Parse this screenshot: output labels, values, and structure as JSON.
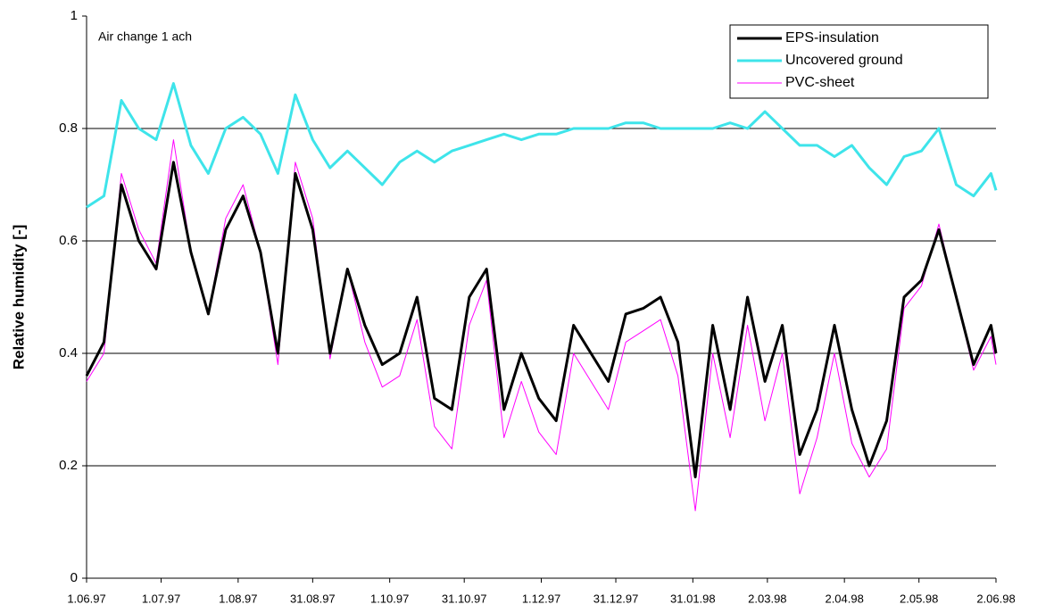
{
  "chart_data": {
    "type": "line",
    "annotation": "Air change 1 ach",
    "y_label": "Relative humidity  [-]",
    "x": [
      "1.06.97",
      "8.06.97",
      "15.06.97",
      "22.06.97",
      "29.06.97",
      "6.07.97",
      "13.07.97",
      "20.07.97",
      "27.07.97",
      "3.08.97",
      "10.08.97",
      "17.08.97",
      "24.08.97",
      "31.08.97",
      "7.09.97",
      "14.09.97",
      "21.09.97",
      "28.09.97",
      "5.10.97",
      "12.10.97",
      "19.10.97",
      "26.10.97",
      "2.11.97",
      "9.11.97",
      "16.11.97",
      "23.11.97",
      "30.11.97",
      "7.12.97",
      "14.12.97",
      "21.12.97",
      "28.12.97",
      "4.01.98",
      "11.01.98",
      "18.01.98",
      "25.01.98",
      "1.02.98",
      "8.02.98",
      "15.02.98",
      "22.02.98",
      "1.03.98",
      "8.03.98",
      "15.03.98",
      "22.03.98",
      "29.03.98",
      "5.04.98",
      "12.04.98",
      "19.04.98",
      "26.04.98",
      "3.05.98",
      "10.05.98",
      "17.05.98",
      "24.05.98",
      "31.05.98",
      "2.06.98"
    ],
    "series": [
      {
        "name": "EPS-insulation",
        "color": "#000000",
        "values": [
          0.36,
          0.42,
          0.7,
          0.6,
          0.55,
          0.74,
          0.58,
          0.47,
          0.62,
          0.68,
          0.58,
          0.4,
          0.72,
          0.62,
          0.4,
          0.55,
          0.45,
          0.38,
          0.4,
          0.5,
          0.32,
          0.3,
          0.5,
          0.55,
          0.3,
          0.4,
          0.32,
          0.28,
          0.45,
          0.4,
          0.35,
          0.47,
          0.48,
          0.5,
          0.42,
          0.18,
          0.45,
          0.3,
          0.5,
          0.35,
          0.45,
          0.22,
          0.3,
          0.45,
          0.3,
          0.2,
          0.28,
          0.5,
          0.53,
          0.62,
          0.5,
          0.38,
          0.45,
          0.4
        ]
      },
      {
        "name": "Uncovered ground",
        "color": "#3ee4ea",
        "values": [
          0.66,
          0.68,
          0.85,
          0.8,
          0.78,
          0.88,
          0.77,
          0.72,
          0.8,
          0.82,
          0.79,
          0.72,
          0.86,
          0.78,
          0.73,
          0.76,
          0.73,
          0.7,
          0.74,
          0.76,
          0.74,
          0.76,
          0.77,
          0.78,
          0.79,
          0.78,
          0.79,
          0.79,
          0.8,
          0.8,
          0.8,
          0.81,
          0.81,
          0.8,
          0.8,
          0.8,
          0.8,
          0.81,
          0.8,
          0.83,
          0.8,
          0.77,
          0.77,
          0.75,
          0.77,
          0.73,
          0.7,
          0.75,
          0.76,
          0.8,
          0.7,
          0.68,
          0.72,
          0.69
        ]
      },
      {
        "name": "PVC-sheet",
        "color": "#ff00ff",
        "values": [
          0.35,
          0.4,
          0.72,
          0.62,
          0.56,
          0.78,
          0.58,
          0.47,
          0.64,
          0.7,
          0.58,
          0.38,
          0.74,
          0.64,
          0.39,
          0.55,
          0.42,
          0.34,
          0.36,
          0.46,
          0.27,
          0.23,
          0.45,
          0.53,
          0.25,
          0.35,
          0.26,
          0.22,
          0.4,
          0.35,
          0.3,
          0.42,
          0.44,
          0.46,
          0.36,
          0.12,
          0.4,
          0.25,
          0.45,
          0.28,
          0.4,
          0.15,
          0.25,
          0.4,
          0.24,
          0.18,
          0.23,
          0.48,
          0.52,
          0.63,
          0.5,
          0.37,
          0.43,
          0.38
        ]
      }
    ],
    "xlim": [
      "1.06.97",
      "2.06.98"
    ],
    "xticks": [
      "1.06.97",
      "1.07.97",
      "1.08.97",
      "31.08.97",
      "1.10.97",
      "31.10.97",
      "1.12.97",
      "31.12.97",
      "31.01.98",
      "2.03.98",
      "2.04.98",
      "2.05.98",
      "2.06.98"
    ],
    "ylim": [
      0,
      1
    ],
    "yticks": [
      0,
      0.2,
      0.4,
      0.6,
      0.8,
      1
    ],
    "grid": true,
    "legend": "upper right"
  }
}
